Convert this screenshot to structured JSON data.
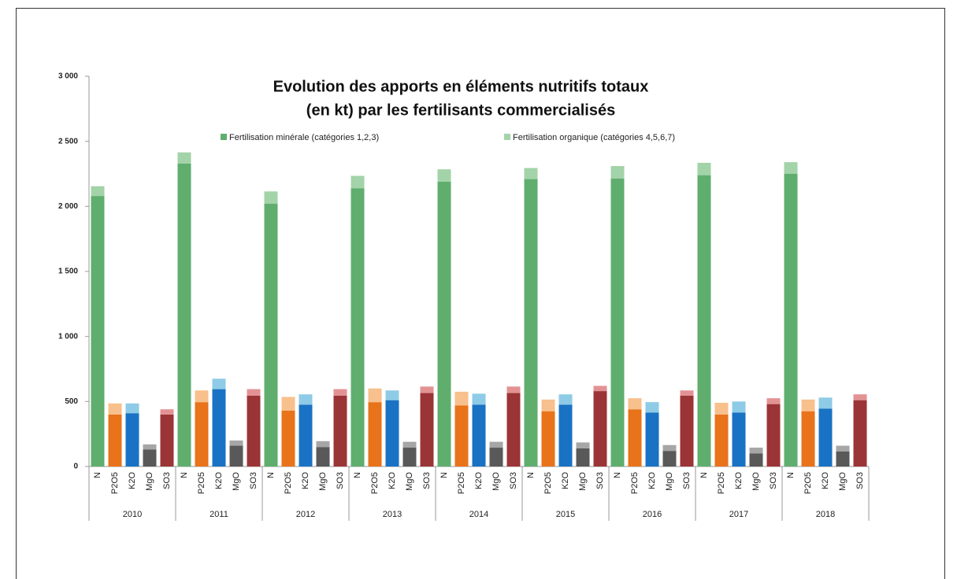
{
  "chart_data": {
    "type": "grouped-stacked-bar",
    "title": [
      "Evolution des apports en éléments nutritifs totaux",
      "(en kt) par les fertilisants commercialisés"
    ],
    "groups": [
      "2010",
      "2011",
      "2012",
      "2013",
      "2014",
      "2015",
      "2016",
      "2017",
      "2018"
    ],
    "categories": [
      "N",
      "P2O5",
      "K2O",
      "MgO",
      "SO3"
    ],
    "series": [
      {
        "name": "Fertilisation minérale (catégories 1,2,3)",
        "color": [
          "#5fae6e",
          "#e8731a",
          "#1a72c4",
          "#595959",
          "#9b3436"
        ],
        "values": [
          [
            2080,
            400,
            410,
            130,
            400
          ],
          [
            2330,
            495,
            595,
            160,
            545
          ],
          [
            2020,
            430,
            475,
            150,
            545
          ],
          [
            2140,
            495,
            510,
            145,
            565
          ],
          [
            2190,
            470,
            475,
            145,
            565
          ],
          [
            2210,
            425,
            475,
            140,
            580
          ],
          [
            2215,
            440,
            415,
            120,
            545
          ],
          [
            2240,
            400,
            415,
            100,
            480
          ],
          [
            2250,
            425,
            445,
            115,
            510
          ]
        ]
      },
      {
        "name": "Fertilisation organique (catégories 4,5,6,7)",
        "color": [
          "#a3d3a8",
          "#f8c08c",
          "#8ecbe6",
          "#a6a6a6",
          "#e39294"
        ],
        "values": [
          [
            75,
            85,
            75,
            40,
            40
          ],
          [
            85,
            90,
            80,
            40,
            50
          ],
          [
            95,
            105,
            80,
            45,
            50
          ],
          [
            95,
            105,
            75,
            45,
            50
          ],
          [
            95,
            105,
            85,
            45,
            50
          ],
          [
            85,
            90,
            80,
            45,
            40
          ],
          [
            95,
            85,
            80,
            45,
            40
          ],
          [
            95,
            90,
            85,
            45,
            45
          ],
          [
            90,
            90,
            85,
            45,
            45
          ]
        ]
      }
    ],
    "ylim": [
      0,
      3000
    ],
    "yticks": [
      0,
      500,
      {
        "value": 1000,
        "label": "1 000"
      },
      {
        "value": 1500,
        "label": "1 500"
      },
      {
        "value": 2000,
        "label": "2 000"
      },
      {
        "value": 2500,
        "label": "2 500"
      },
      {
        "value": 3000,
        "label": "3 000"
      }
    ]
  }
}
